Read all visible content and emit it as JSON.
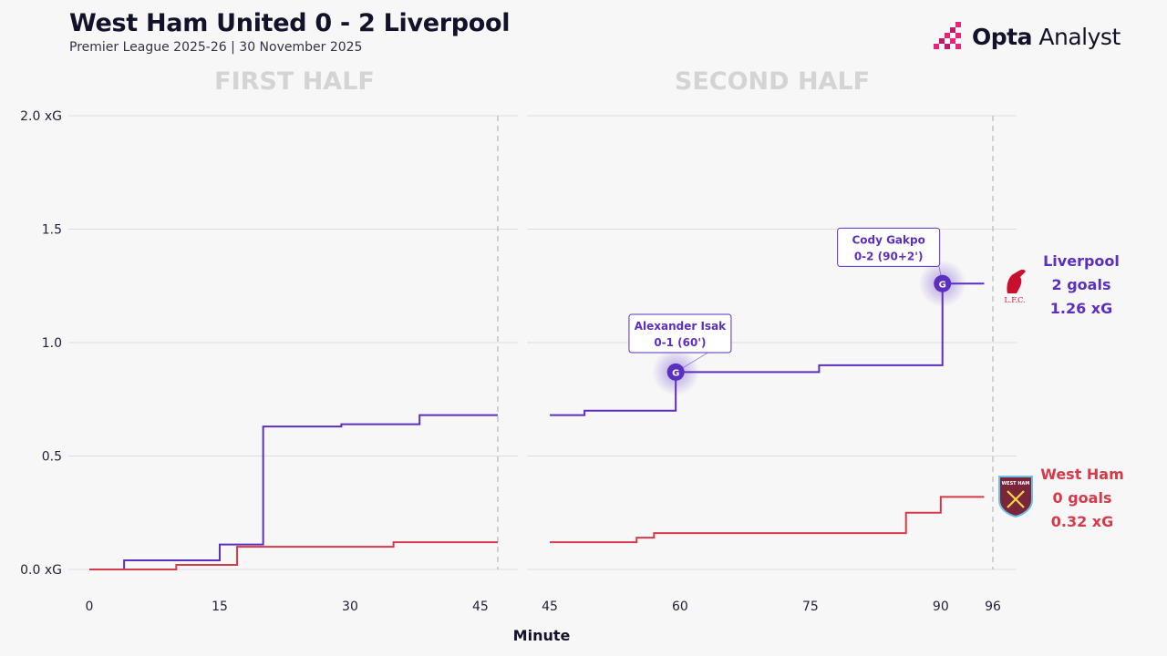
{
  "header": {
    "title": "West Ham United 0 - 2 Liverpool",
    "subtitle": "Premier League 2025-26 | 30 November 2025",
    "brand_bold": "Opta",
    "brand_light": " Analyst"
  },
  "colors": {
    "liverpool": "#5b2fc0",
    "westham": "#d63a4a",
    "grid": "#dddddd",
    "half_title": "#d4d4d4"
  },
  "chart_data": {
    "type": "line",
    "step": true,
    "xlabel": "Minute",
    "ylabel": "",
    "ylim": [
      0,
      2.0
    ],
    "y_ticks": [
      {
        "value": 0.0,
        "label": "0.0 xG"
      },
      {
        "value": 0.5,
        "label": "0.5"
      },
      {
        "value": 1.0,
        "label": "1.0"
      },
      {
        "value": 1.5,
        "label": "1.5"
      },
      {
        "value": 2.0,
        "label": "2.0 xG"
      }
    ],
    "halves": [
      {
        "name": "FIRST HALF",
        "xlim": [
          0,
          47
        ],
        "x_ticks": [
          0,
          15,
          30,
          45
        ],
        "end_marker": 47,
        "series": [
          {
            "team": "liverpool",
            "x": [
              0,
              4,
              15,
              20,
              29,
              38,
              47
            ],
            "y": [
              0,
              0.04,
              0.11,
              0.63,
              0.64,
              0.68,
              0.68
            ]
          },
          {
            "team": "westham",
            "x": [
              0,
              10,
              17,
              35,
              47
            ],
            "y": [
              0,
              0.02,
              0.1,
              0.12,
              0.12
            ]
          }
        ]
      },
      {
        "name": "SECOND HALF",
        "xlim": [
          45,
          96
        ],
        "x_ticks": [
          45,
          60,
          75,
          90,
          96
        ],
        "end_marker": 96,
        "series": [
          {
            "team": "liverpool",
            "x": [
              45,
              49,
              59.5,
              76,
              90.2,
              95
            ],
            "y": [
              0.68,
              0.7,
              0.87,
              0.9,
              1.26,
              1.26
            ]
          },
          {
            "team": "westham",
            "x": [
              45,
              55,
              57,
              86,
              90,
              95
            ],
            "y": [
              0.12,
              0.14,
              0.16,
              0.25,
              0.32,
              0.32
            ]
          }
        ],
        "goals": [
          {
            "x": 59.5,
            "y": 0.87,
            "marker": "G",
            "player": "Alexander Isak",
            "score": "0-1 (60')",
            "box_x": 60,
            "box_y": 1.04
          },
          {
            "x": 90.2,
            "y": 1.26,
            "marker": "G",
            "player": "Cody Gakpo",
            "score": "0-2 (90+2')",
            "box_x": 84,
            "box_y": 1.42
          }
        ]
      }
    ],
    "summary": [
      {
        "team": "liverpool",
        "name": "Liverpool",
        "goals": "2 goals",
        "xg": "1.26 xG",
        "crest": "L.F.C."
      },
      {
        "team": "westham",
        "name": "West Ham",
        "goals": "0 goals",
        "xg": "0.32 xG",
        "crest": "WEST HAM"
      }
    ]
  }
}
